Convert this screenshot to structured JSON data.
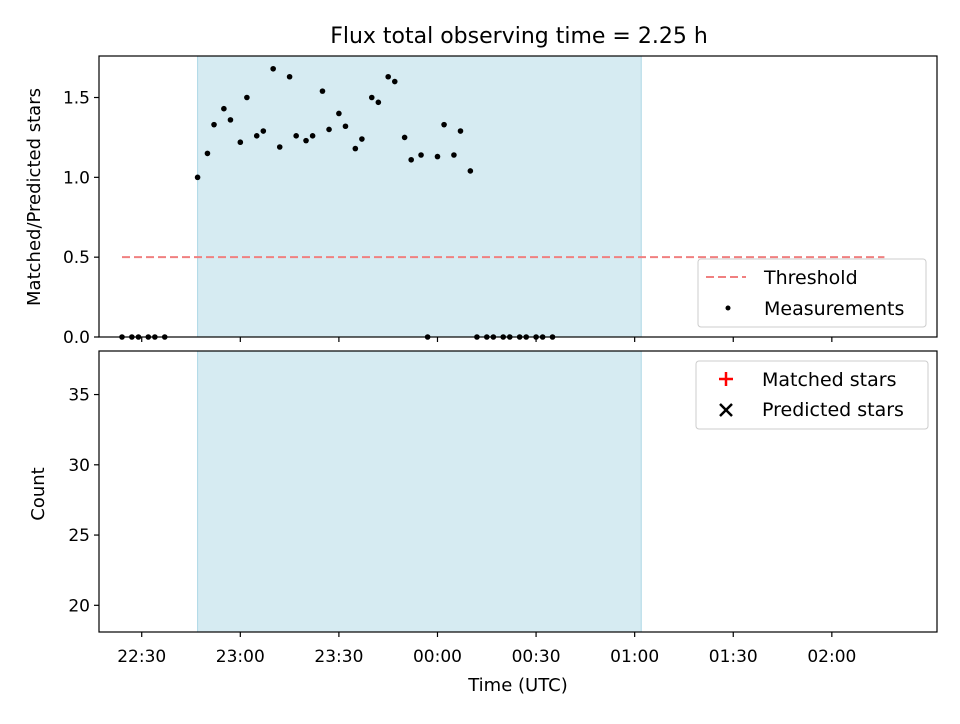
{
  "chart_data": {
    "type": "scatter",
    "title": "Flux total observing time = 2.25 h",
    "xlabel": "Time (UTC)",
    "x_unit": "HH:MM UTC",
    "x_ticks": [
      "22:30",
      "23:00",
      "23:30",
      "00:00",
      "00:30",
      "01:00",
      "01:30",
      "02:00"
    ],
    "xlim": [
      "22:17",
      "02:32"
    ],
    "highlight_span": {
      "start": "22:47",
      "end": "01:02",
      "color": "#add8e6"
    },
    "panels": [
      {
        "id": "ratio",
        "ylabel": "Matched/Predicted stars",
        "ylim": [
          0,
          1.76
        ],
        "y_ticks": [
          "0.0",
          "0.5",
          "1.0",
          "1.5"
        ],
        "threshold": {
          "name": "Threshold",
          "y": 0.5,
          "x_start": "22:24",
          "x_end": "02:16",
          "color": "#f08080"
        },
        "series": [
          {
            "name": "Measurements",
            "marker": "dot",
            "color": "#000000",
            "x": [
              "22:24",
              "22:27",
              "22:29",
              "22:32",
              "22:34",
              "22:37",
              "22:47",
              "22:50",
              "22:52",
              "22:55",
              "22:57",
              "23:00",
              "23:02",
              "23:05",
              "23:07",
              "23:10",
              "23:12",
              "23:15",
              "23:17",
              "23:20",
              "23:22",
              "23:25",
              "23:27",
              "23:30",
              "23:32",
              "23:35",
              "23:37",
              "23:40",
              "23:42",
              "23:45",
              "23:47",
              "23:50",
              "23:52",
              "23:55",
              "23:57",
              "24:00",
              "24:02",
              "24:05",
              "24:07",
              "24:10",
              "24:12",
              "24:15",
              "24:17",
              "24:20",
              "24:22",
              "24:25",
              "24:27",
              "24:30",
              "24:32",
              "24:35",
              "24:37",
              "24:40",
              "24:42",
              "24:45",
              "24:47",
              "24:50",
              "24:52",
              "24:55",
              "24:57",
              "25:00",
              "25:02",
              "25:05",
              "25:07",
              "25:10",
              "25:12",
              "25:15",
              "25:17",
              "25:20",
              "25:22",
              "25:25",
              "25:27",
              "25:30",
              "25:32",
              "25:35",
              "25:37",
              "25:40",
              "25:42",
              "25:45",
              "25:47",
              "25:50",
              "25:52",
              "25:55",
              "25:57",
              "26:00",
              "26:02",
              "26:05",
              "26:07",
              "26:10",
              "26:12",
              "26:15",
              "26:17"
            ],
            "y": [
              0,
              0,
              0,
              0,
              0,
              0,
              1.0,
              1.15,
              1.33,
              1.43,
              1.36,
              1.22,
              1.5,
              1.26,
              1.29,
              1.68,
              1.19,
              1.63,
              1.26,
              1.23,
              1.26,
              1.54,
              1.3,
              1.4,
              1.32,
              1.18,
              1.24,
              1.5,
              1.47,
              1.63,
              1.6,
              1.25,
              1.11,
              1.14,
              null,
              null,
              null,
              null,
              null,
              null,
              null,
              null,
              null,
              null,
              null,
              null,
              null,
              null,
              null,
              null,
              null,
              null,
              null,
              null,
              null,
              null,
              null,
              null,
              null,
              null,
              null,
              null,
              null,
              null,
              null,
              null,
              null,
              null,
              null,
              null,
              null,
              null,
              null,
              null,
              null,
              null,
              null,
              null,
              null,
              null,
              null,
              null,
              null,
              null,
              null,
              null,
              null,
              null,
              null,
              null,
              null
            ]
          }
        ],
        "series_compact": [
          {
            "t": "22:24",
            "v": 0
          },
          {
            "t": "22:27",
            "v": 0
          },
          {
            "t": "22:29",
            "v": 0
          },
          {
            "t": "22:32",
            "v": 0
          },
          {
            "t": "22:34",
            "v": 0
          },
          {
            "t": "22:37",
            "v": 0
          },
          {
            "t": "22:47",
            "v": 1.0
          },
          {
            "t": "22:50",
            "v": 1.15
          },
          {
            "t": "22:52",
            "v": 1.33
          },
          {
            "t": "22:55",
            "v": 1.43
          },
          {
            "t": "22:57",
            "v": 1.36
          },
          {
            "t": "23:00",
            "v": 1.22
          },
          {
            "t": "23:02",
            "v": 1.5
          },
          {
            "t": "23:05",
            "v": 1.26
          },
          {
            "t": "23:07",
            "v": 1.29
          },
          {
            "t": "23:10",
            "v": 1.68
          },
          {
            "t": "23:12",
            "v": 1.19
          },
          {
            "t": "23:15",
            "v": 1.63
          },
          {
            "t": "23:17",
            "v": 1.26
          },
          {
            "t": "23:20",
            "v": 1.23
          },
          {
            "t": "23:22",
            "v": 1.26
          },
          {
            "t": "23:25",
            "v": 1.54
          },
          {
            "t": "23:27",
            "v": 1.3
          },
          {
            "t": "23:30",
            "v": 1.4
          },
          {
            "t": "23:32",
            "v": 1.32
          },
          {
            "t": "23:35",
            "v": 1.18
          },
          {
            "t": "23:37",
            "v": 1.24
          },
          {
            "t": "23:40",
            "v": 1.5
          },
          {
            "t": "23:42",
            "v": 1.47
          },
          {
            "t": "23:45",
            "v": 1.63
          },
          {
            "t": "23:47",
            "v": 1.6
          },
          {
            "t": "23:50",
            "v": 1.25
          },
          {
            "t": "23:52",
            "v": 1.11
          },
          {
            "t": "23:55",
            "v": 1.14
          }
        ]
      }
    ]
  },
  "plot": {
    "ratio": {
      "ylabel": "Matched/Predicted stars",
      "ylim": [
        0,
        1.76
      ],
      "y_ticks": [
        0,
        0.5,
        1.0,
        1.5
      ],
      "y_tick_labels": [
        "0.0",
        "0.5",
        "1.0",
        "1.5"
      ],
      "threshold": 0.5,
      "threshold_x_start": "22:24",
      "threshold_x_end": "02:16",
      "measurements": [
        [
          "22:24",
          0
        ],
        [
          "22:27",
          0
        ],
        [
          "22:29",
          0
        ],
        [
          "22:32",
          0
        ],
        [
          "22:34",
          0
        ],
        [
          "22:37",
          0
        ],
        [
          "22:47",
          1.0
        ],
        [
          "22:50",
          1.15
        ],
        [
          "22:52",
          1.33
        ],
        [
          "22:55",
          1.43
        ],
        [
          "22:57",
          1.36
        ],
        [
          "23:00",
          1.22
        ],
        [
          "23:02",
          1.5
        ],
        [
          "23:05",
          1.26
        ],
        [
          "23:07",
          1.29
        ],
        [
          "23:10",
          1.68
        ],
        [
          "23:12",
          1.19
        ],
        [
          "23:15",
          1.63
        ],
        [
          "23:17",
          1.26
        ],
        [
          "23:20",
          1.23
        ],
        [
          "23:22",
          1.26
        ],
        [
          "23:25",
          1.54
        ],
        [
          "23:27",
          1.3
        ],
        [
          "23:30",
          1.4
        ],
        [
          "23:32",
          1.32
        ],
        [
          "23:35",
          1.18
        ],
        [
          "23:37",
          1.24
        ],
        [
          "23:40",
          1.5
        ],
        [
          "23:42",
          1.47
        ],
        [
          "23:45",
          1.63
        ],
        [
          "23:47",
          1.6
        ],
        [
          "23:50",
          1.25
        ],
        [
          "23:52",
          1.11
        ],
        [
          "23:55",
          1.14
        ],
        [
          "23:57",
          0
        ],
        [
          "00:00",
          1.13
        ],
        [
          "00:02",
          1.33
        ],
        [
          "00:05",
          1.14
        ],
        [
          "00:07",
          1.29
        ],
        [
          "00:10",
          1.04
        ],
        [
          "00:12",
          0
        ],
        [
          "00:15",
          0
        ],
        [
          "00:17",
          0
        ],
        [
          "00:20",
          0
        ],
        [
          "00:22",
          0
        ],
        [
          "00:25",
          0
        ],
        [
          "00:27",
          0
        ],
        [
          "00:30",
          0
        ],
        [
          "00:32",
          0
        ],
        [
          "00:35",
          0
        ]
      ]
    },
    "count": {
      "ylabel": "Count",
      "ylim": [
        18.1,
        38.1
      ],
      "y_ticks": [
        20,
        25,
        30,
        35
      ],
      "y_tick_labels": [
        "20",
        "25",
        "30",
        "35"
      ]
    }
  },
  "legend_top": {
    "threshold_label": "Threshold",
    "measurements_label": "Measurements"
  },
  "legend_bottom": {
    "matched_label": "Matched stars",
    "predicted_label": "Predicted stars"
  },
  "colors": {
    "span": "#add8e6",
    "threshold": "#f08080",
    "matched": "#ff0000",
    "predicted": "#000000",
    "measurement": "#000000"
  }
}
